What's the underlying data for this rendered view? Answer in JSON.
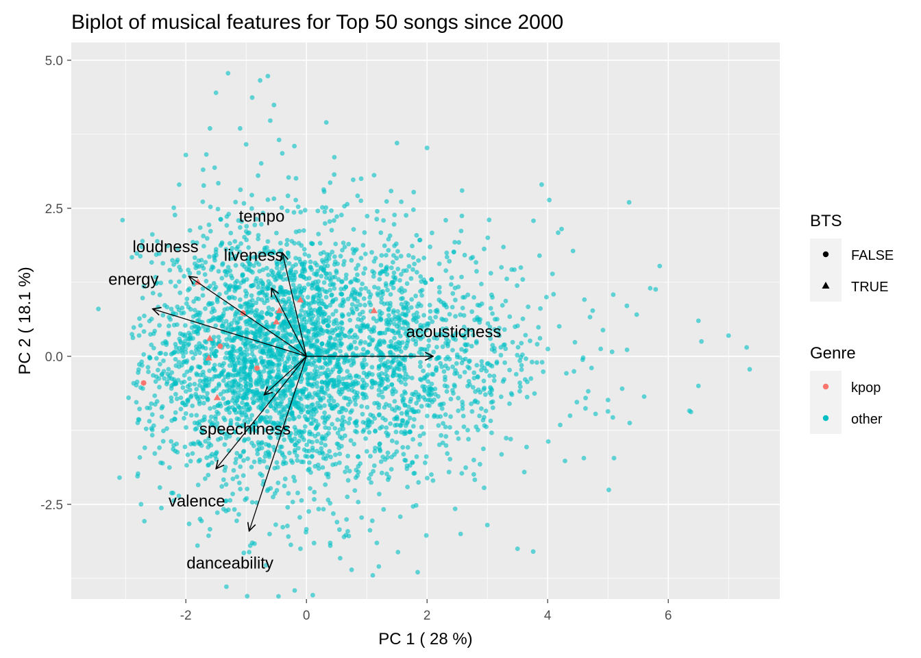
{
  "chart_data": {
    "type": "scatter",
    "title": "Biplot of musical features for Top 50 songs since 2000",
    "xlabel": "PC 1 ( 28 %)",
    "ylabel": "PC 2 ( 18.1 %)",
    "xlim": [
      -3.9,
      7.85
    ],
    "ylim": [
      -4.1,
      5.3
    ],
    "x_ticks": [
      -2,
      0,
      2,
      4,
      6
    ],
    "x_tick_labels": [
      "-2",
      "0",
      "2",
      "4",
      "6"
    ],
    "y_ticks": [
      -2.5,
      0.0,
      2.5,
      5.0
    ],
    "y_tick_labels": [
      "-2.5",
      "0.0",
      "2.5",
      "5.0"
    ],
    "grid": true,
    "legend_placement": "right",
    "colors": {
      "kpop": "#F8766D",
      "other": "#00BFC4",
      "panel": "#EBEBEB",
      "grid": "#FFFFFF"
    },
    "legends": [
      {
        "title": "BTS",
        "entries": [
          {
            "label": "FALSE",
            "shape": "circle"
          },
          {
            "label": "TRUE",
            "shape": "triangle"
          }
        ]
      },
      {
        "title": "Genre",
        "entries": [
          {
            "label": "kpop",
            "color": "#F8766D"
          },
          {
            "label": "other",
            "color": "#00BFC4"
          }
        ]
      }
    ],
    "loadings": [
      {
        "name": "tempo",
        "x": -0.4,
        "y": 1.75
      },
      {
        "name": "loudness",
        "x": -1.95,
        "y": 1.35
      },
      {
        "name": "liveness",
        "x": -0.58,
        "y": 1.15
      },
      {
        "name": "energy",
        "x": -2.55,
        "y": 0.8
      },
      {
        "name": "acousticness",
        "x": 2.1,
        "y": 0.0
      },
      {
        "name": "speechiness",
        "x": -0.7,
        "y": -0.65
      },
      {
        "name": "valence",
        "x": -1.5,
        "y": -1.9
      },
      {
        "name": "danceability",
        "x": -0.95,
        "y": -2.95
      }
    ],
    "kpop_points": [
      {
        "x": -1.8,
        "y": 1.25,
        "bts": "TRUE"
      },
      {
        "x": -0.1,
        "y": 0.95,
        "bts": "TRUE"
      },
      {
        "x": 1.12,
        "y": 0.77,
        "bts": "TRUE"
      },
      {
        "x": -0.45,
        "y": 0.77,
        "bts": "TRUE"
      },
      {
        "x": -1.05,
        "y": 0.73,
        "bts": "FALSE"
      },
      {
        "x": -0.5,
        "y": 0.58,
        "bts": "TRUE"
      },
      {
        "x": -1.6,
        "y": 0.3,
        "bts": "TRUE"
      },
      {
        "x": -1.43,
        "y": 0.17,
        "bts": "FALSE"
      },
      {
        "x": -1.62,
        "y": -0.03,
        "bts": "TRUE"
      },
      {
        "x": -0.82,
        "y": -0.2,
        "bts": "FALSE"
      },
      {
        "x": -2.7,
        "y": -0.45,
        "bts": "FALSE"
      },
      {
        "x": -1.48,
        "y": -0.7,
        "bts": "TRUE"
      }
    ],
    "other_outlier_points": [
      {
        "x": -1.3,
        "y": 4.78
      },
      {
        "x": -1.5,
        "y": 4.45
      },
      {
        "x": -0.9,
        "y": 4.37
      },
      {
        "x": -0.6,
        "y": 3.98
      },
      {
        "x": 0.33,
        "y": 3.95
      },
      {
        "x": -1.6,
        "y": 3.85
      },
      {
        "x": -1.1,
        "y": 3.85
      },
      {
        "x": -1.0,
        "y": 3.58
      },
      {
        "x": -0.2,
        "y": 3.55
      },
      {
        "x": 2.0,
        "y": 3.52
      },
      {
        "x": -2.0,
        "y": 3.4
      },
      {
        "x": 3.9,
        "y": 2.9
      },
      {
        "x": 5.35,
        "y": 2.6
      },
      {
        "x": -3.05,
        "y": 2.3
      },
      {
        "x": -3.45,
        "y": 0.8
      },
      {
        "x": 5.7,
        "y": 1.15
      },
      {
        "x": 6.5,
        "y": 0.6
      },
      {
        "x": 7.0,
        "y": 0.35
      },
      {
        "x": 7.3,
        "y": 0.15
      },
      {
        "x": 7.35,
        "y": -0.22
      },
      {
        "x": 6.55,
        "y": 0.25
      },
      {
        "x": 6.5,
        "y": -0.5
      },
      {
        "x": 6.35,
        "y": -0.92
      },
      {
        "x": 5.6,
        "y": -0.68
      },
      {
        "x": 5.0,
        "y": -0.93
      },
      {
        "x": 5.1,
        "y": -1.72
      },
      {
        "x": 4.6,
        "y": -1.72
      },
      {
        "x": 3.5,
        "y": -3.25
      },
      {
        "x": 3.0,
        "y": -2.85
      },
      {
        "x": -3.1,
        "y": -2.05
      },
      {
        "x": -1.6,
        "y": -2.92
      },
      {
        "x": -0.9,
        "y": -3.15
      },
      {
        "x": -0.1,
        "y": -3.25
      },
      {
        "x": 1.1,
        "y": -3.7
      },
      {
        "x": 1.2,
        "y": -3.55
      },
      {
        "x": -2.95,
        "y": -0.7
      }
    ]
  }
}
